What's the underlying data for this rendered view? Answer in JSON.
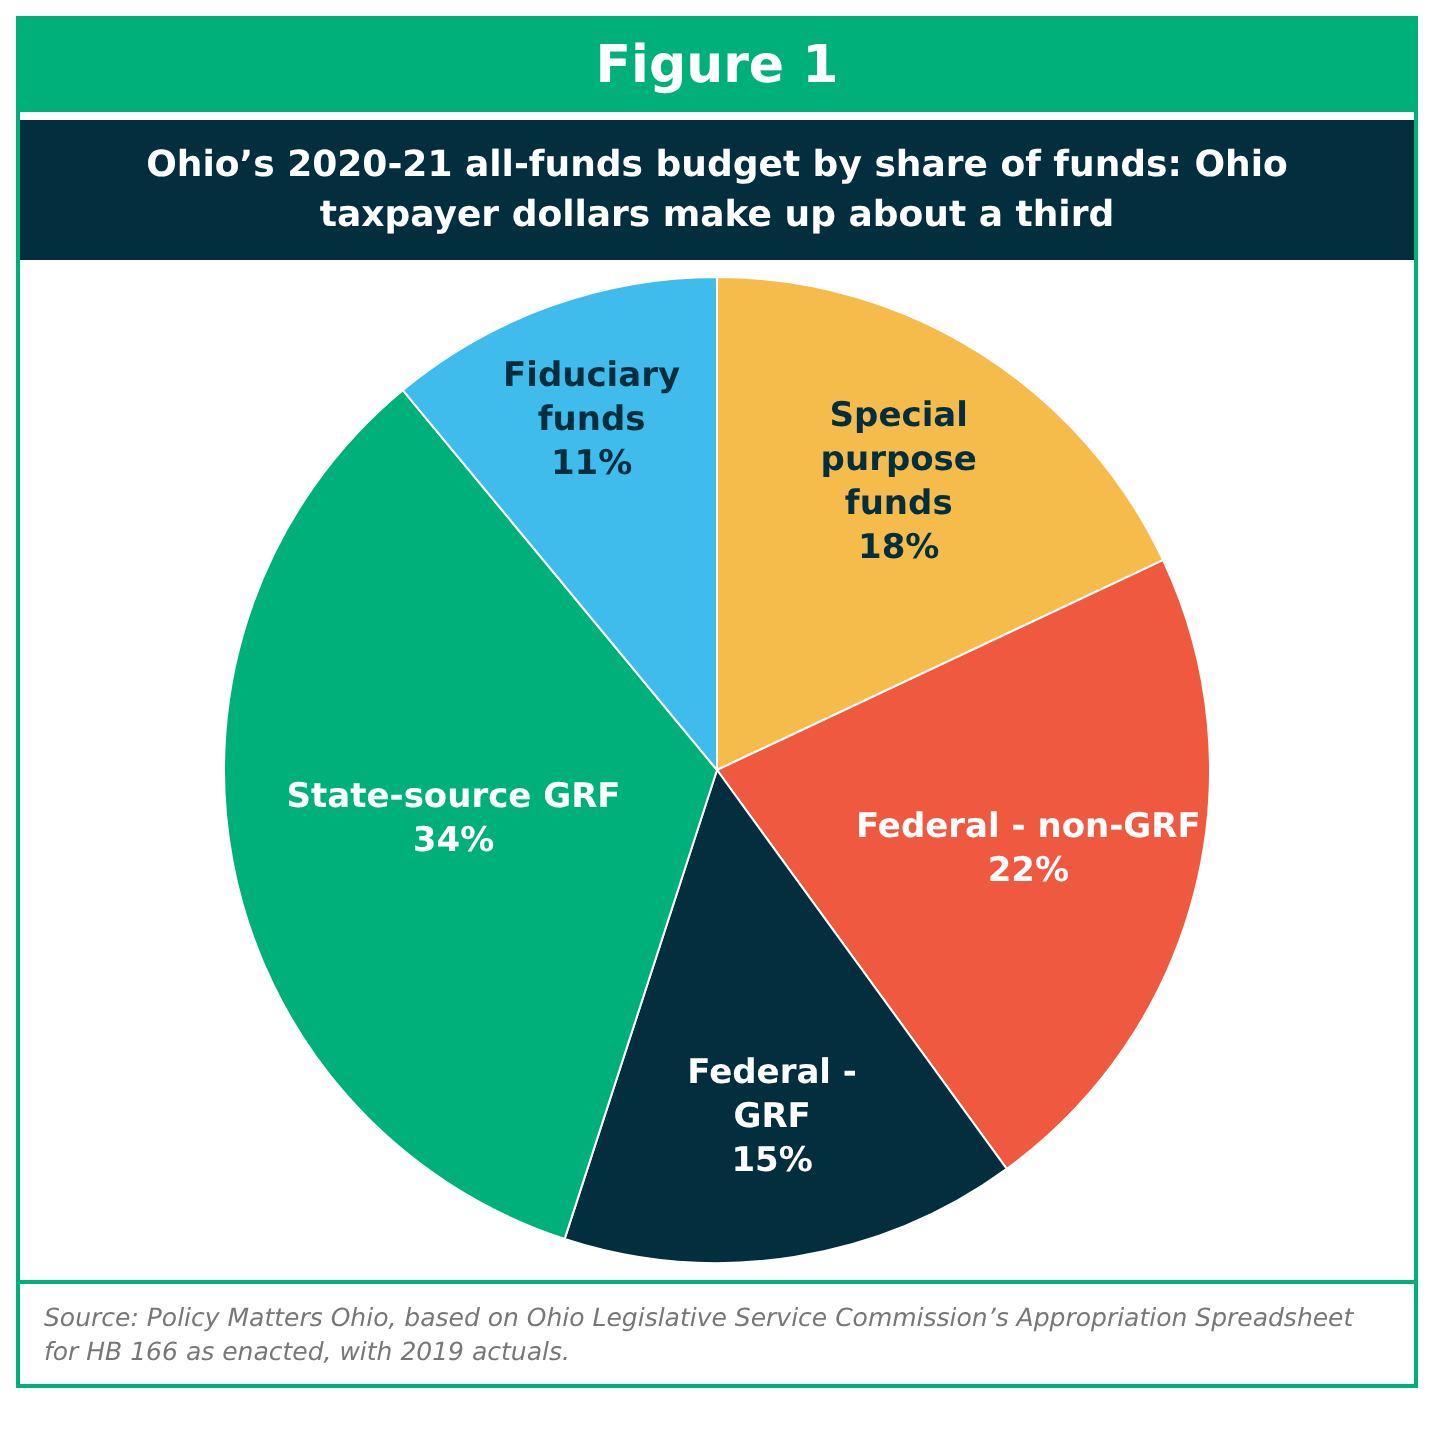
{
  "chart_data": {
    "type": "pie",
    "title": "Figure 1",
    "subtitle": "Ohio’s 2020-21 all-funds budget by share of funds: Ohio taxpayer dollars make up about a third",
    "categories": [
      "Special purpose funds",
      "Federal - non-GRF",
      "Federal - GRF",
      "State-source GRF",
      "Fiduciary funds"
    ],
    "values": [
      18,
      22,
      15,
      34,
      11
    ],
    "colors": [
      "#f6bc4b",
      "#ef5940",
      "#022e3e",
      "#00b07b",
      "#3fbceb"
    ],
    "value_labels": [
      "18%",
      "22%",
      "15%",
      "34%",
      "11%"
    ],
    "legend": false,
    "annotations": [
      "Source: Policy Matters Ohio, based on Ohio Legislative Service Commission’s Appropriation Spreadsheet for HB 166 as enacted, with 2019 actuals."
    ]
  }
}
